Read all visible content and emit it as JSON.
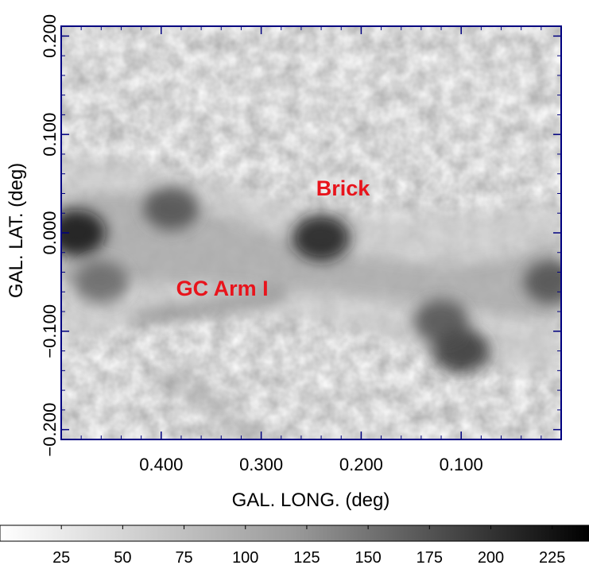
{
  "map": {
    "x_axis": {
      "title": "GAL. LONG. (deg)",
      "range": [
        0.5,
        0.0
      ],
      "ticks": [
        "0.400",
        "0.300",
        "0.200",
        "0.100"
      ],
      "tick_values": [
        0.4,
        0.3,
        0.2,
        0.1
      ]
    },
    "y_axis": {
      "title": "GAL. LAT. (deg)",
      "range": [
        -0.21,
        0.21
      ],
      "ticks": [
        "0.200",
        "0.100",
        "0.000",
        "−0.100",
        "−0.200"
      ],
      "tick_values": [
        0.2,
        0.1,
        0.0,
        -0.1,
        -0.2
      ]
    },
    "annotations": [
      {
        "id": "brick",
        "text": "Brick",
        "l": 0.245,
        "b": 0.038
      },
      {
        "id": "gc-arm-1",
        "text": "GC Arm I",
        "l": 0.385,
        "b": -0.064
      }
    ],
    "emission_features": [
      {
        "l": 0.485,
        "b": 0.0,
        "strength": 0.95
      },
      {
        "l": 0.46,
        "b": -0.05,
        "strength": 0.6
      },
      {
        "l": 0.39,
        "b": 0.025,
        "strength": 0.7
      },
      {
        "l": 0.24,
        "b": -0.005,
        "strength": 0.9
      },
      {
        "l": 0.1,
        "b": -0.12,
        "strength": 0.8
      },
      {
        "l": 0.12,
        "b": -0.09,
        "strength": 0.7
      },
      {
        "l": 0.01,
        "b": -0.05,
        "strength": 0.7
      }
    ]
  },
  "colorbar": {
    "range": [
      0,
      240
    ],
    "labels": [
      "25",
      "50",
      "75",
      "100",
      "125",
      "150",
      "175",
      "200",
      "225"
    ],
    "values": [
      25,
      50,
      75,
      100,
      125,
      150,
      175,
      200,
      225
    ]
  },
  "colors": {
    "frame": "#000080",
    "annotation": "#e8141c"
  }
}
